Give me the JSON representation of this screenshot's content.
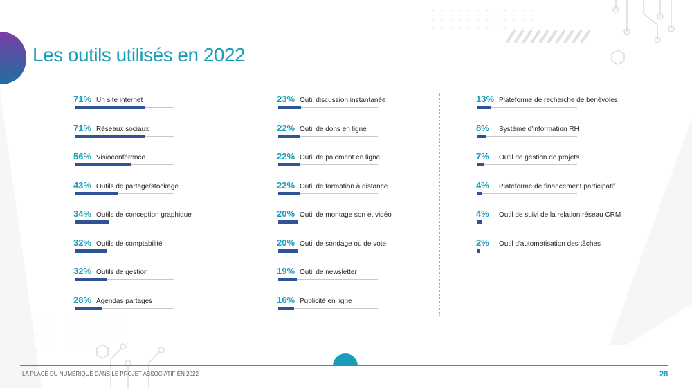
{
  "title": "Les outils utilisés en 2022",
  "footer": {
    "text": "LA PLACE DU NUMÉRIQUE DANS LE PROJET ASSOCIATIF EN 2022",
    "page": "28"
  },
  "colors": {
    "accent": "#1a9db8",
    "bar_fill": "#2e5496",
    "bar_track": "#c8c8c8",
    "text": "#262626"
  },
  "chart_data": {
    "type": "bar",
    "categories": [
      "Un site internet",
      "Réseaux sociaux",
      "Visioconférence",
      "Outils de partage/stockage",
      "Outils de conception graphique",
      "Outils de comptabilité",
      "Outils de gestion",
      "Agendas partagés",
      "Outil discussion instantanée",
      "Outil de dons en ligne",
      "Outil de paiement en ligne",
      "Outil de formation à distance",
      "Outil de montage son et vidéo",
      "Outil de sondage ou de vote",
      "Outil de newsletter",
      "Publicité en ligne",
      "Plateforme de recherche de bénévoles",
      "Système d'information RH",
      "Outil de gestion de projets",
      "Plateforme de financement participatif",
      "Outil de suivi de la relation réseau CRM",
      "Outil d'automatisation des tâches"
    ],
    "values": [
      71,
      71,
      56,
      43,
      34,
      32,
      32,
      28,
      23,
      22,
      22,
      22,
      20,
      20,
      19,
      16,
      13,
      8,
      7,
      4,
      4,
      2
    ],
    "labels": [
      "71%",
      "71%",
      "56%",
      "43%",
      "34%",
      "32%",
      "32%",
      "28%",
      "23%",
      "22%",
      "22%",
      "22%",
      "20%",
      "20%",
      "19%",
      "16%",
      "13%",
      "8%",
      "7%",
      "4%",
      "4%",
      "2%"
    ],
    "title": "Les outils utilisés en 2022",
    "xlabel": "",
    "ylabel": "",
    "ylim": [
      0,
      100
    ],
    "columns": [
      [
        0,
        1,
        2,
        3,
        4,
        5,
        6,
        7
      ],
      [
        8,
        9,
        10,
        11,
        12,
        13,
        14,
        15
      ],
      [
        16,
        17,
        18,
        19,
        20,
        21
      ]
    ]
  }
}
